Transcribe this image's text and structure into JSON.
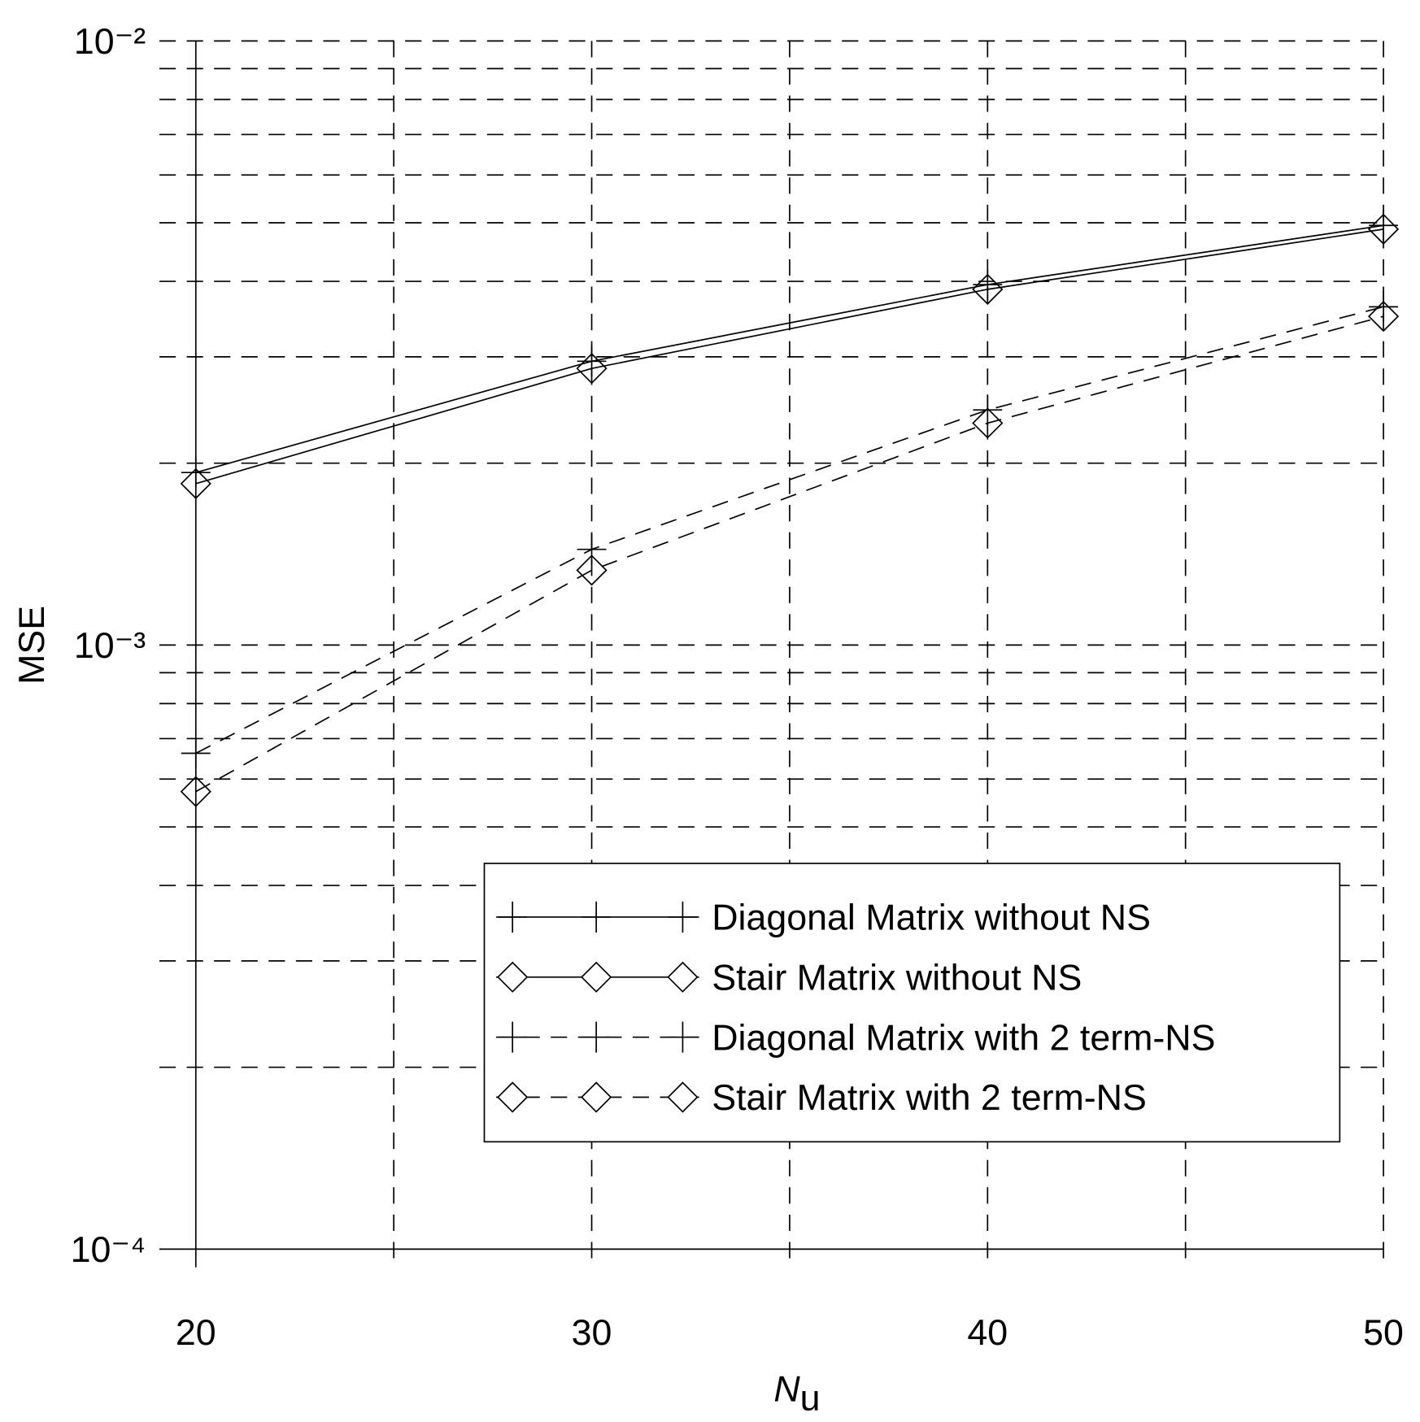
{
  "chart_data": {
    "type": "line",
    "ylabel": "MSE",
    "xlabel": {
      "main": "N",
      "sub": "u"
    },
    "x": [
      20,
      30,
      40,
      50
    ],
    "xlim": [
      19.08,
      50
    ],
    "xticks": [
      20,
      30,
      40,
      50
    ],
    "xminor": [
      25,
      35,
      45
    ],
    "ylim": [
      0.0001,
      0.01
    ],
    "log_y": true,
    "grid": true,
    "yticks": [
      {
        "value": 0.0001,
        "label": "10⁻⁴"
      },
      {
        "value": 0.001,
        "label": "10⁻³"
      },
      {
        "value": 0.01,
        "label": "10⁻²"
      }
    ],
    "yminor": [
      0.0002,
      0.0003,
      0.0004,
      0.0005,
      0.0006,
      0.0007,
      0.0008,
      0.0009,
      0.002,
      0.003,
      0.004,
      0.005,
      0.006,
      0.007,
      0.008,
      0.009
    ],
    "legend": "lower right",
    "series": [
      {
        "name": "Diagonal Matrix without NS",
        "color": "#000000",
        "dash": "solid",
        "marker": "plus",
        "values": [
          0.00193,
          0.00295,
          0.00395,
          0.00495
        ]
      },
      {
        "name": "Stair Matrix without NS",
        "color": "#000000",
        "dash": "solid",
        "marker": "diamond",
        "values": [
          0.00185,
          0.00287,
          0.00388,
          0.00488
        ]
      },
      {
        "name": "Diagonal Matrix with 2 term-NS",
        "color": "#000000",
        "dash": "dashed",
        "marker": "plus",
        "values": [
          0.000662,
          0.00144,
          0.00245,
          0.00363
        ]
      },
      {
        "name": "Stair Matrix with 2 term-NS",
        "color": "#000000",
        "dash": "dashed",
        "marker": "diamond",
        "values": [
          0.000572,
          0.00133,
          0.00233,
          0.0035
        ]
      }
    ]
  }
}
